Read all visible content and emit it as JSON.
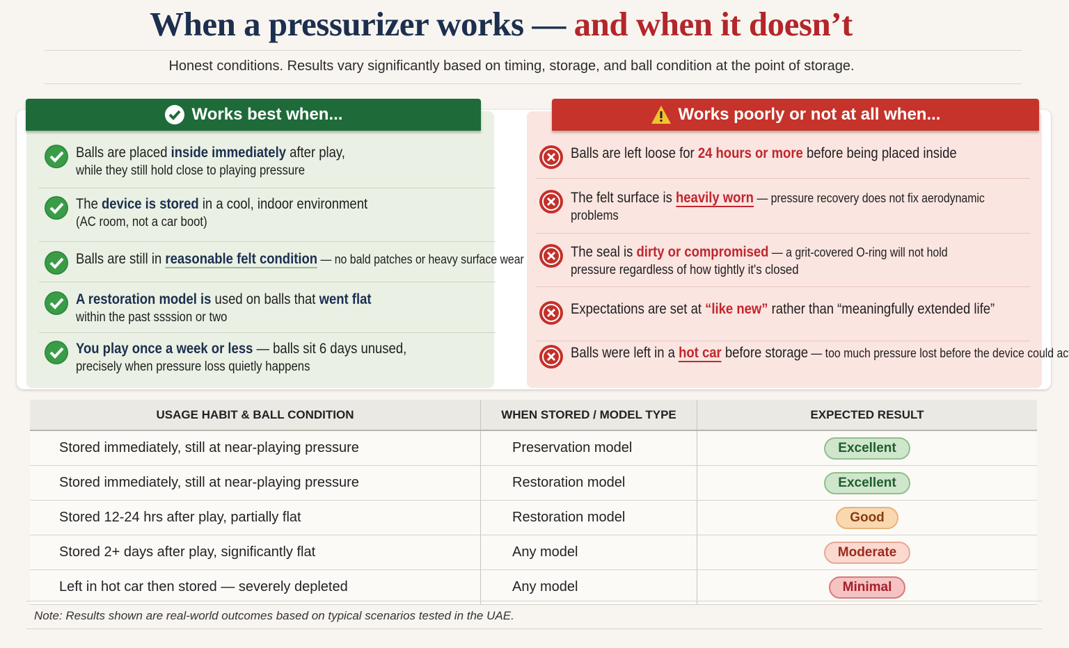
{
  "header": {
    "title_main": "When a pressurizer works —",
    "title_accent": "and when it doesn’t",
    "subtitle": "Honest conditions. Results vary significantly based on timing, storage, and ball condition at the point of storage."
  },
  "works_best": {
    "heading": "Works best when...",
    "items": [
      [
        "Balls are placed ",
        "inside immediately",
        " after play,",
        "while they still hold close to playing pressure"
      ],
      [
        "The ",
        "device is stored",
        " in a cool, indoor environment",
        "(AC room, not a car boot)"
      ],
      [
        "Balls are still in ",
        "reasonable felt condition",
        " — no bald patches or heavy surface wear"
      ],
      [
        "A restoration model is",
        " used on balls that ",
        "went flat",
        "within the past ssssion or two"
      ],
      [
        "You play once a week or less",
        " — balls sit 6 days unused,",
        "precisely when pressure loss quietly happens"
      ]
    ]
  },
  "works_poorly": {
    "heading": "Works poorly or not at all when...",
    "items": [
      [
        "Balls are left loose for ",
        "24 hours or more",
        " before being placed inside"
      ],
      [
        "The felt surface is ",
        "heavily worn",
        " — pressure recovery does not fix aerodynamic",
        "problems"
      ],
      [
        "The seal is ",
        "dirty or compromised",
        " — a grit-covered O-ring will not hold",
        "pressure regardless of how tightly it's closed"
      ],
      [
        "Expectations are set at ",
        "“like new”",
        " rather than “meaningfully extended life”"
      ],
      [
        "Balls were left in a ",
        "hot car",
        " before storage",
        " — too much pressure lost before the device could act"
      ]
    ]
  },
  "table": {
    "headers": [
      "USAGE HABIT & BALL CONDITION",
      "WHEN STORED / MODEL TYPE",
      "EXPECTED RESULT"
    ],
    "rows": [
      [
        "Stored immediately, still at near-playing pressure",
        "Preservation model",
        "Excellent"
      ],
      [
        "Stored immediately, still at near-playing pressure",
        "Restoration model",
        "Excellent"
      ],
      [
        "Stored 12-24 hrs after play, partially flat",
        "Restoration model",
        "Good"
      ],
      [
        "Stored 2+ days after play, significantly flat",
        "Any model",
        "Moderate"
      ],
      [
        "Left in hot car then stored — severely depleted",
        "Any model",
        "Minimal"
      ]
    ]
  },
  "note": "Note: Results shown are real-world outcomes based on typical scenarios tested in the UAE."
}
